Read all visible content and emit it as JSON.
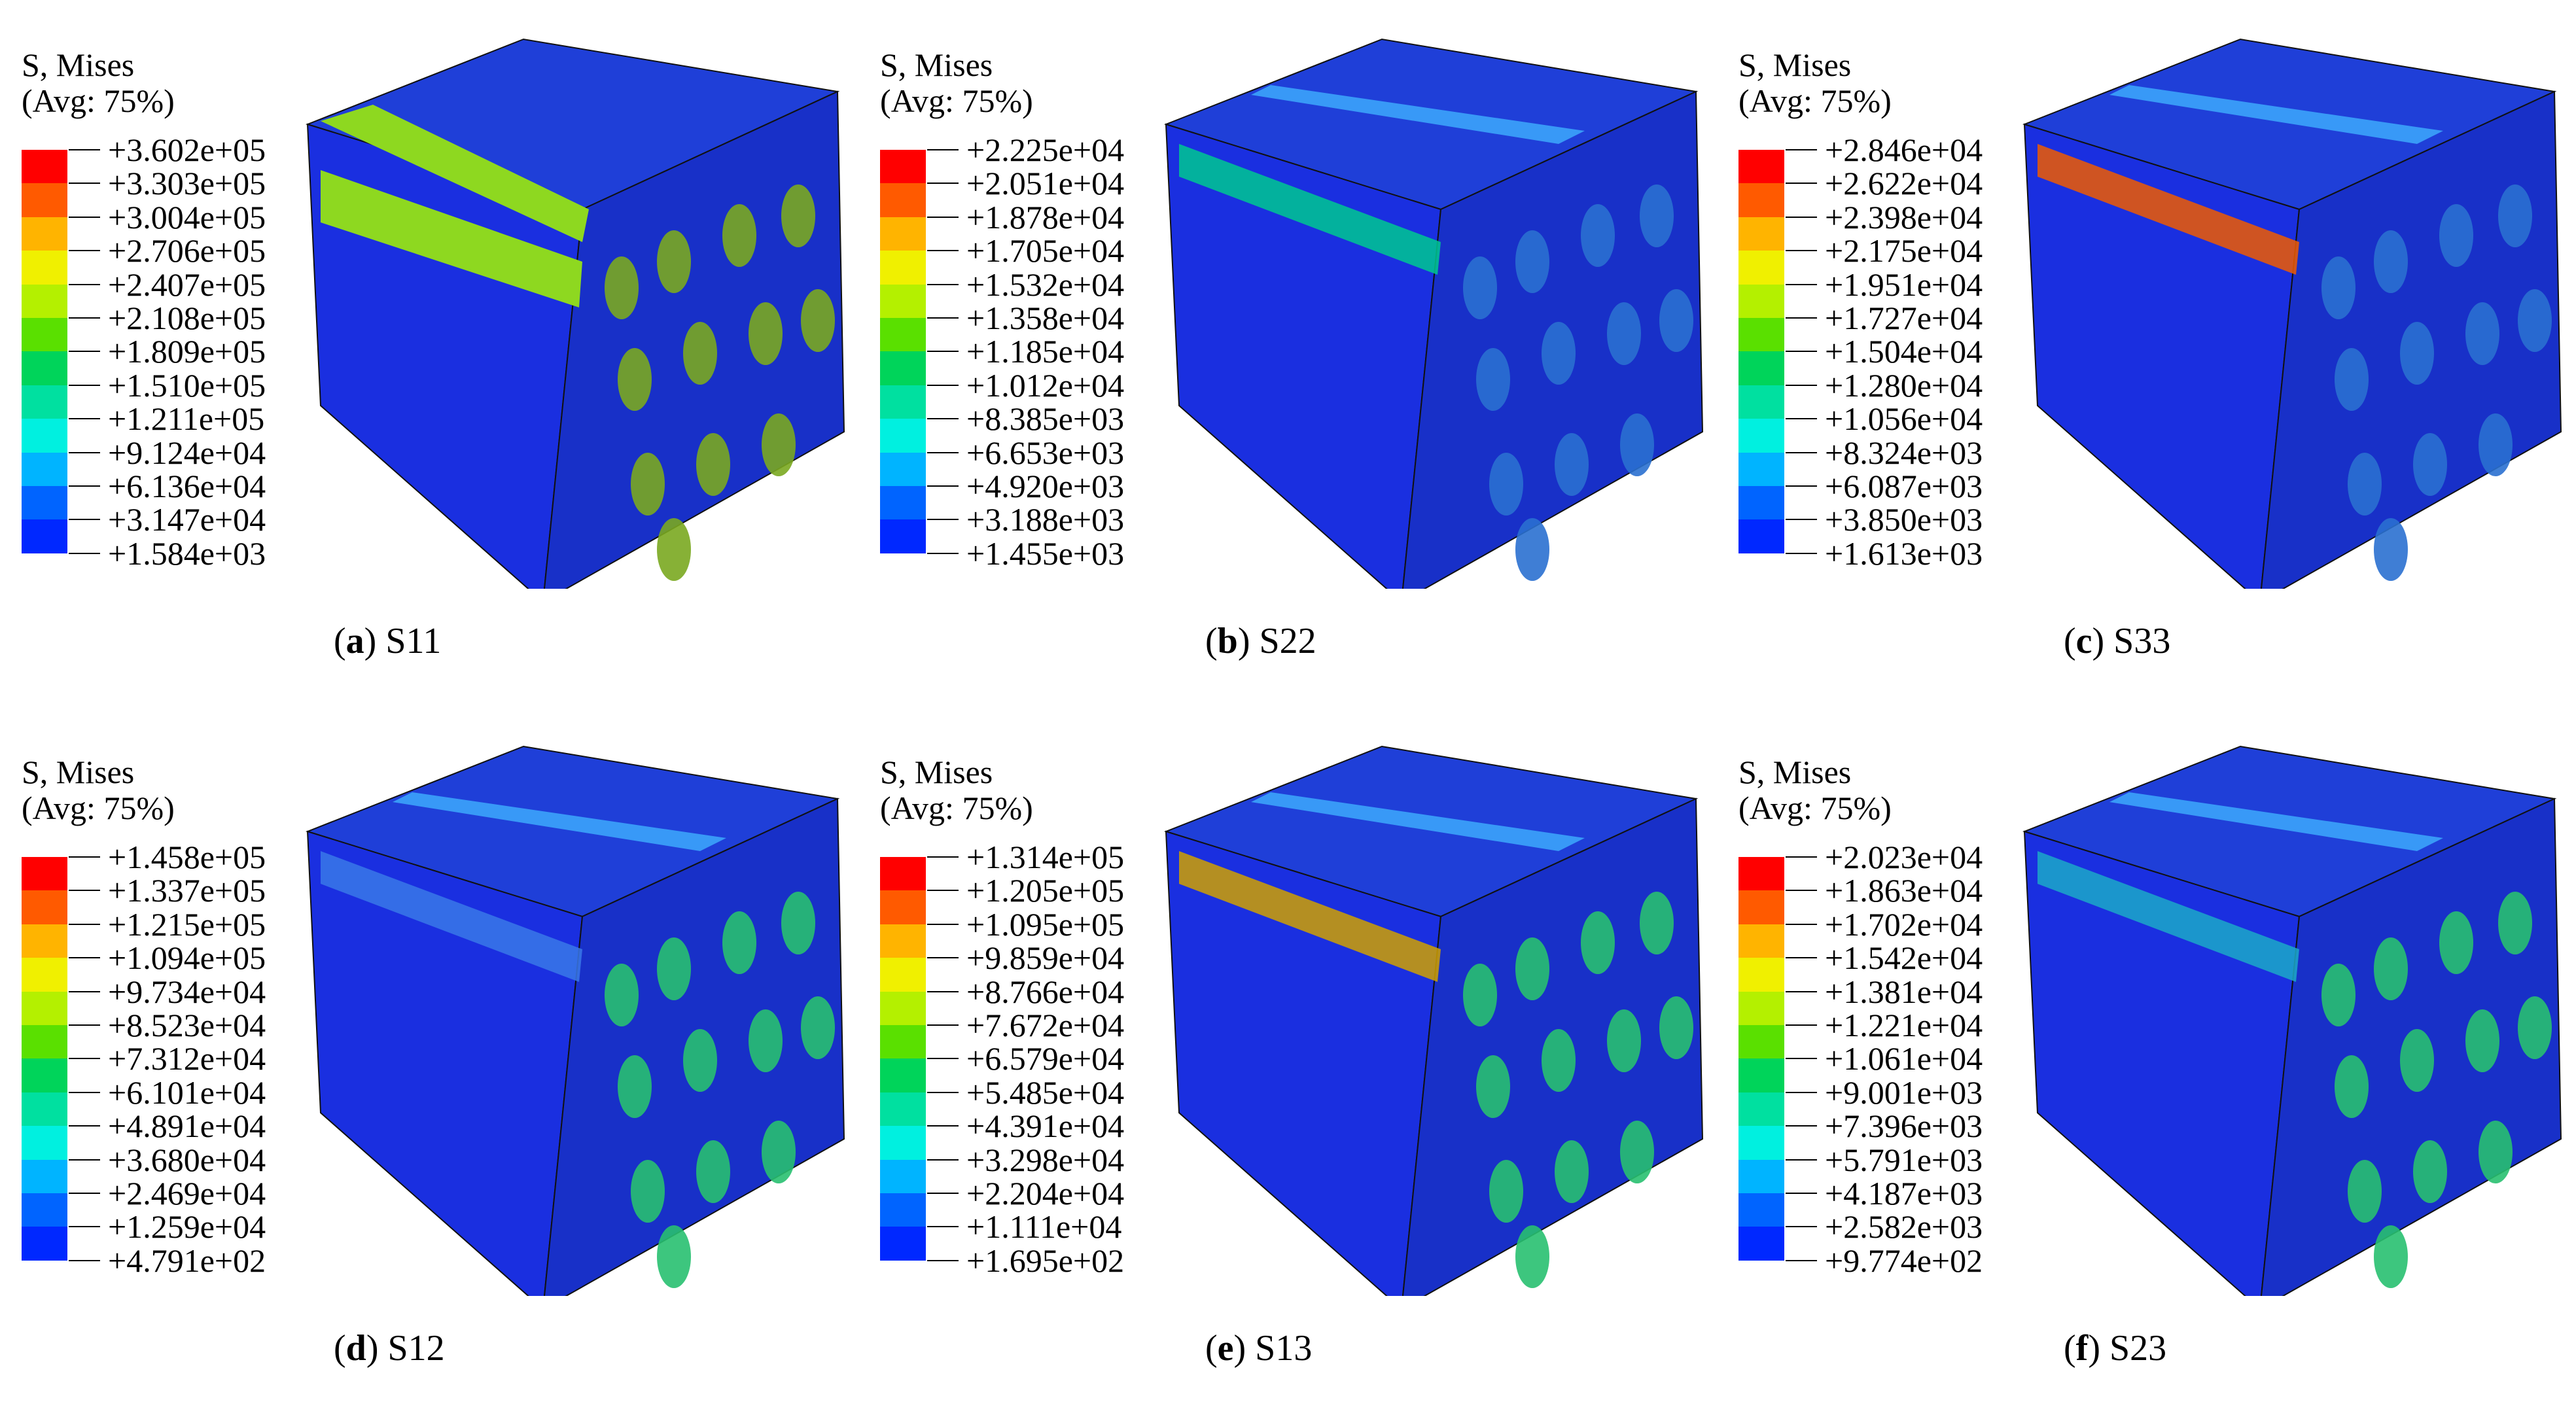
{
  "palette": [
    "#ff0000",
    "#ff5a00",
    "#ffb400",
    "#f0f000",
    "#b4f000",
    "#5ae000",
    "#00d45a",
    "#00e0a0",
    "#00f0e0",
    "#00b4ff",
    "#0064ff",
    "#0028ff"
  ],
  "panels": [
    {
      "id": "a",
      "letter": "a",
      "component": "S11",
      "title1": "S, Mises",
      "title2": "(Avg: 75%)",
      "ticks": [
        "+3.602e+05",
        "+3.303e+05",
        "+3.004e+05",
        "+2.706e+05",
        "+2.407e+05",
        "+2.108e+05",
        "+1.809e+05",
        "+1.510e+05",
        "+1.211e+05",
        "+9.124e+04",
        "+6.136e+04",
        "+3.147e+04",
        "+1.584e+03"
      ]
    },
    {
      "id": "b",
      "letter": "b",
      "component": "S22",
      "title1": "S, Mises",
      "title2": "(Avg: 75%)",
      "ticks": [
        "+2.225e+04",
        "+2.051e+04",
        "+1.878e+04",
        "+1.705e+04",
        "+1.532e+04",
        "+1.358e+04",
        "+1.185e+04",
        "+1.012e+04",
        "+8.385e+03",
        "+6.653e+03",
        "+4.920e+03",
        "+3.188e+03",
        "+1.455e+03"
      ]
    },
    {
      "id": "c",
      "letter": "c",
      "component": "S33",
      "title1": "S, Mises",
      "title2": "(Avg: 75%)",
      "ticks": [
        "+2.846e+04",
        "+2.622e+04",
        "+2.398e+04",
        "+2.175e+04",
        "+1.951e+04",
        "+1.727e+04",
        "+1.504e+04",
        "+1.280e+04",
        "+1.056e+04",
        "+8.324e+03",
        "+6.087e+03",
        "+3.850e+03",
        "+1.613e+03"
      ]
    },
    {
      "id": "d",
      "letter": "d",
      "component": "S12",
      "title1": "S, Mises",
      "title2": "(Avg: 75%)",
      "ticks": [
        "+1.458e+05",
        "+1.337e+05",
        "+1.215e+05",
        "+1.094e+05",
        "+9.734e+04",
        "+8.523e+04",
        "+7.312e+04",
        "+6.101e+04",
        "+4.891e+04",
        "+3.680e+04",
        "+2.469e+04",
        "+1.259e+04",
        "+4.791e+02"
      ]
    },
    {
      "id": "e",
      "letter": "e",
      "component": "S13",
      "title1": "S, Mises",
      "title2": "(Avg: 75%)",
      "ticks": [
        "+1.314e+05",
        "+1.205e+05",
        "+1.095e+05",
        "+9.859e+04",
        "+8.766e+04",
        "+7.672e+04",
        "+6.579e+04",
        "+5.485e+04",
        "+4.391e+04",
        "+3.298e+04",
        "+2.204e+04",
        "+1.111e+04",
        "+1.695e+02"
      ]
    },
    {
      "id": "f",
      "letter": "f",
      "component": "S23",
      "title1": "S, Mises",
      "title2": "(Avg: 75%)",
      "ticks": [
        "+2.023e+04",
        "+1.863e+04",
        "+1.702e+04",
        "+1.542e+04",
        "+1.381e+04",
        "+1.221e+04",
        "+1.061e+04",
        "+9.001e+03",
        "+7.396e+03",
        "+5.791e+03",
        "+4.187e+03",
        "+2.582e+03",
        "+9.774e+02"
      ]
    }
  ]
}
